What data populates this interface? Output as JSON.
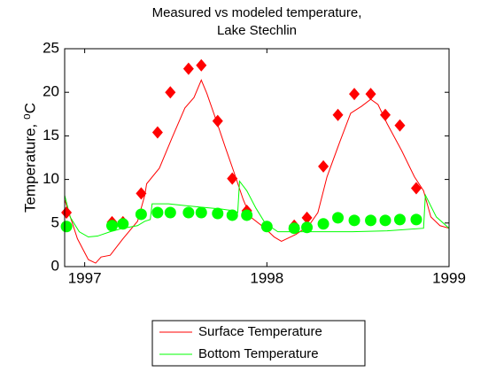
{
  "chart_data": {
    "type": "line",
    "title": [
      "Measured vs modeled temperature,",
      "Lake Stechlin"
    ],
    "ylabel": "Temperature, ⁰C",
    "xlim": [
      1996.89,
      1999
    ],
    "xticks": [
      1997,
      1998,
      1999
    ],
    "ylim": [
      0,
      25
    ],
    "yticks": [
      0,
      5,
      10,
      15,
      20,
      25
    ],
    "grid": false,
    "legend": "below",
    "series": [
      {
        "name": "Surface Temperature",
        "color": "#ff0000",
        "marker": "none",
        "x": [
          1996.89,
          1996.96,
          1997.02,
          1997.06,
          1997.09,
          1997.14,
          1997.21,
          1997.29,
          1997.33,
          1997.34,
          1997.41,
          1997.48,
          1997.55,
          1997.6,
          1997.64,
          1997.67,
          1997.72,
          1997.77,
          1997.82,
          1997.87,
          1997.91,
          1997.99,
          1998.04,
          1998.08,
          1998.16,
          1998.23,
          1998.28,
          1998.33,
          1998.4,
          1998.46,
          1998.52,
          1998.57,
          1998.61,
          1998.66,
          1998.74,
          1998.81,
          1998.86,
          1998.9,
          1998.95,
          1999
        ],
        "values": [
          7.7,
          3.2,
          0.8,
          0.4,
          1.1,
          1.3,
          3.2,
          5.2,
          8.2,
          9.5,
          11.3,
          14.8,
          18.2,
          19.4,
          21.4,
          19.9,
          16.9,
          13.8,
          10.8,
          7.7,
          5.7,
          4.4,
          3.4,
          2.9,
          3.7,
          4.7,
          6.2,
          10.3,
          14.3,
          17.6,
          18.4,
          19.2,
          18.6,
          16.4,
          13.3,
          10.3,
          8.7,
          5.7,
          4.7,
          4.4
        ]
      },
      {
        "name": "Bottom Temperature",
        "color": "#00ff00",
        "marker": "none",
        "x": [
          1996.89,
          1996.92,
          1996.97,
          1997.02,
          1997.07,
          1997.14,
          1997.21,
          1997.29,
          1997.33,
          1997.36,
          1997.37,
          1997.46,
          1997.55,
          1997.65,
          1997.75,
          1997.82,
          1997.84,
          1997.85,
          1997.89,
          1997.94,
          1997.99,
          1998.06,
          1998.13,
          1998.28,
          1998.47,
          1998.66,
          1998.86,
          1998.87,
          1998.93,
          1999
        ],
        "values": [
          8.2,
          5.7,
          4.0,
          3.4,
          3.5,
          4.0,
          4.4,
          4.7,
          5.2,
          5.4,
          7.2,
          7.2,
          7.0,
          6.8,
          6.6,
          6.4,
          6.2,
          9.8,
          8.7,
          6.7,
          5.0,
          4.0,
          4.0,
          4.0,
          4.0,
          4.1,
          4.4,
          8.2,
          5.7,
          4.4
        ]
      },
      {
        "color": "#ff0000",
        "marker": "diamond",
        "x": [
          1996.9,
          1997.15,
          1997.21,
          1997.31,
          1997.4,
          1997.47,
          1997.57,
          1997.64,
          1997.73,
          1997.81,
          1997.89,
          1998.15,
          1998.22,
          1998.31,
          1998.39,
          1998.48,
          1998.57,
          1998.65,
          1998.73,
          1998.82
        ],
        "values": [
          6.2,
          5.1,
          5.1,
          8.4,
          15.4,
          20.0,
          22.7,
          23.1,
          16.7,
          10.1,
          6.4,
          4.7,
          5.6,
          11.5,
          17.4,
          19.8,
          19.8,
          17.4,
          16.2,
          9.0
        ]
      },
      {
        "color": "#00ff00",
        "marker": "circle",
        "x": [
          1996.9,
          1997.15,
          1997.21,
          1997.31,
          1997.4,
          1997.47,
          1997.57,
          1997.64,
          1997.73,
          1997.81,
          1997.89,
          1998.0,
          1998.15,
          1998.22,
          1998.31,
          1998.39,
          1998.48,
          1998.57,
          1998.65,
          1998.73,
          1998.82
        ],
        "values": [
          4.6,
          4.7,
          4.9,
          6.0,
          6.2,
          6.2,
          6.2,
          6.2,
          6.1,
          5.9,
          5.9,
          4.6,
          4.4,
          4.5,
          4.9,
          5.6,
          5.3,
          5.3,
          5.3,
          5.4,
          5.4
        ]
      }
    ]
  }
}
